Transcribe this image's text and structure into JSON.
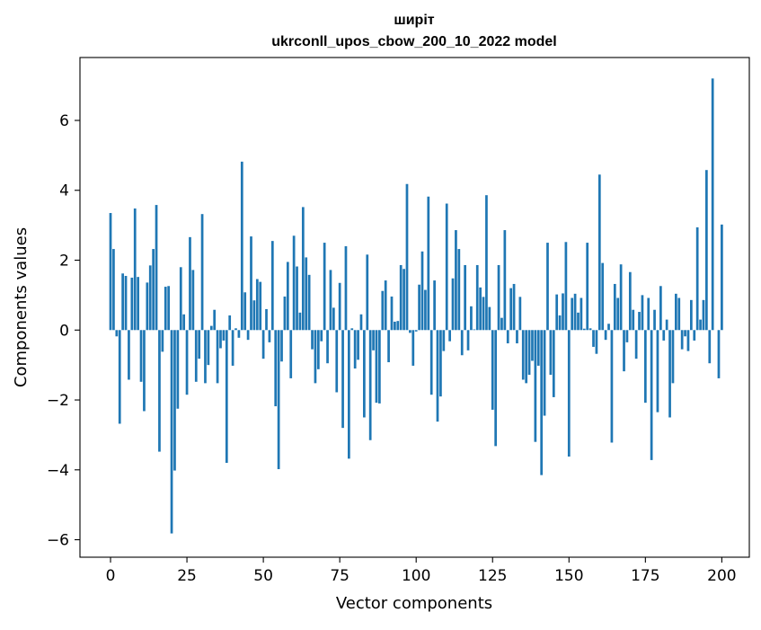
{
  "chart_data": {
    "type": "bar",
    "title_line1": "ширіт",
    "title_line2": "ukrconll_upos_cbow_200_10_2022 model",
    "xlabel": "Vector components",
    "ylabel": "Components values",
    "xlim": [
      -10,
      209
    ],
    "ylim": [
      -6.5,
      7.8
    ],
    "xticks": [
      0,
      25,
      50,
      75,
      100,
      125,
      150,
      175,
      200
    ],
    "xtick_labels": [
      "0",
      "25",
      "50",
      "75",
      "100",
      "125",
      "150",
      "175",
      "200"
    ],
    "yticks": [
      -6,
      -4,
      -2,
      0,
      2,
      4,
      6
    ],
    "ytick_labels": [
      "−6",
      "−4",
      "−2",
      "0",
      "2",
      "4",
      "6"
    ],
    "grid": false,
    "bar_color": "#1f77b4",
    "values": [
      3.35,
      2.32,
      -0.18,
      -2.68,
      1.62,
      1.55,
      -1.42,
      1.5,
      3.48,
      1.52,
      -1.48,
      -2.32,
      1.36,
      1.85,
      2.32,
      3.58,
      -3.48,
      -0.62,
      1.24,
      1.26,
      -5.82,
      -4.02,
      -2.25,
      1.8,
      0.45,
      -1.85,
      2.66,
      1.72,
      -1.48,
      -0.82,
      3.32,
      -1.52,
      -1.0,
      0.12,
      0.58,
      -1.52,
      -0.52,
      -0.3,
      -3.8,
      0.42,
      -1.02,
      0.05,
      -0.22,
      4.82,
      1.08,
      -0.28,
      2.68,
      0.85,
      1.46,
      1.38,
      -0.82,
      0.6,
      -0.35,
      2.55,
      -2.18,
      -3.98,
      -0.9,
      0.96,
      1.95,
      -1.38,
      2.7,
      1.82,
      0.5,
      3.52,
      2.08,
      1.58,
      -0.55,
      -1.52,
      -1.12,
      -0.32,
      2.5,
      -0.95,
      1.72,
      0.64,
      -1.78,
      1.35,
      -2.8,
      2.4,
      -3.68,
      0.05,
      -1.1,
      -0.85,
      0.45,
      -2.5,
      2.16,
      -3.15,
      -0.58,
      -2.08,
      -2.1,
      1.12,
      1.42,
      -0.92,
      0.96,
      0.24,
      0.26,
      1.86,
      1.75,
      4.18,
      -0.08,
      -1.02,
      -0.04,
      1.3,
      2.25,
      1.15,
      3.82,
      -1.85,
      1.42,
      -2.62,
      -1.9,
      -0.6,
      3.62,
      -0.32,
      1.48,
      2.86,
      2.32,
      -0.72,
      1.86,
      -0.58,
      0.68,
      0.02,
      1.86,
      1.22,
      0.95,
      3.86,
      0.66,
      -2.28,
      -3.32,
      1.86,
      0.35,
      2.86,
      -0.38,
      1.2,
      1.32,
      -0.38,
      0.95,
      -1.42,
      -1.52,
      -1.28,
      -0.88,
      -3.2,
      -1.02,
      -4.15,
      -2.45,
      2.5,
      -1.28,
      -1.92,
      1.02,
      0.42,
      1.05,
      2.52,
      -3.62,
      0.92,
      1.04,
      0.5,
      0.92,
      0.04,
      2.5,
      0.05,
      -0.48,
      -0.68,
      4.45,
      1.92,
      -0.28,
      0.18,
      -3.22,
      1.32,
      0.92,
      1.88,
      -1.18,
      -0.35,
      1.66,
      0.58,
      -0.82,
      0.52,
      1.0,
      -2.08,
      0.92,
      -3.72,
      0.58,
      -2.35,
      1.26,
      -0.3,
      0.3,
      -2.5,
      -1.52,
      1.04,
      0.92,
      -0.55,
      -0.18,
      -0.6,
      0.86,
      -0.3,
      2.94,
      0.3,
      0.86,
      4.58,
      -0.95,
      7.2,
      0.0,
      -1.38,
      3.02
    ]
  }
}
